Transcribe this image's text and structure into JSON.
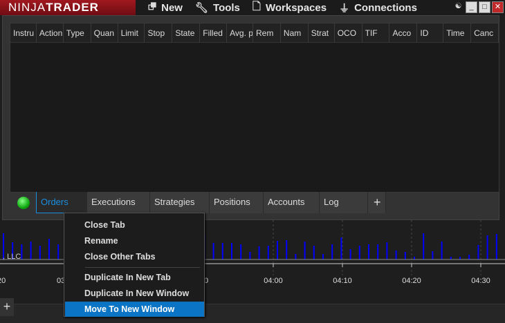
{
  "app": {
    "logo_light": "NINJA",
    "logo_bold": "TRADER"
  },
  "menu": [
    {
      "label": "New",
      "icon": "new-window-icon"
    },
    {
      "label": "Tools",
      "icon": "wrench-icon"
    },
    {
      "label": "Workspaces",
      "icon": "document-icon"
    },
    {
      "label": "Connections",
      "icon": "plug-icon"
    }
  ],
  "window_buttons": {
    "link": "☯",
    "minimize": "_",
    "maximize": "□",
    "close": "✕"
  },
  "columns": [
    "Instru",
    "Action",
    "Type",
    "Quan",
    "Limit",
    "Stop",
    "State",
    "Filled",
    "Avg. p",
    "Rem",
    "Nam",
    "Strat",
    "OCO",
    "TIF",
    "Acco",
    "ID",
    "Time",
    "Canc"
  ],
  "tabs": [
    "Orders",
    "Executions",
    "Strategies",
    "Positions",
    "Accounts",
    "Log"
  ],
  "add_tab": "+",
  "context_menu": {
    "items": [
      "Close Tab",
      "Rename",
      "Close Other Tabs",
      "Duplicate In New Tab",
      "Duplicate In New Window",
      "Move To New Window"
    ],
    "highlighted": "Move To New Window"
  },
  "background_chart": {
    "watermark": ", LLC",
    "time_labels": [
      "20",
      "03",
      "50",
      "04:00",
      "04:10",
      "04:20",
      "04:30"
    ],
    "bar_color": "#0000ff",
    "volumes": [
      38,
      25,
      22,
      26,
      20,
      30,
      22,
      22,
      17,
      21,
      28,
      17,
      36,
      32,
      17,
      29,
      31,
      29,
      35,
      21,
      35,
      20,
      37,
      24,
      24,
      24,
      22,
      11,
      19,
      20,
      27,
      28,
      8,
      26,
      20,
      8,
      22,
      32,
      15,
      20,
      22,
      22,
      25,
      13,
      11,
      4,
      38,
      12,
      26,
      4,
      4,
      7,
      21,
      35,
      37
    ]
  },
  "bottom_add": "+"
}
